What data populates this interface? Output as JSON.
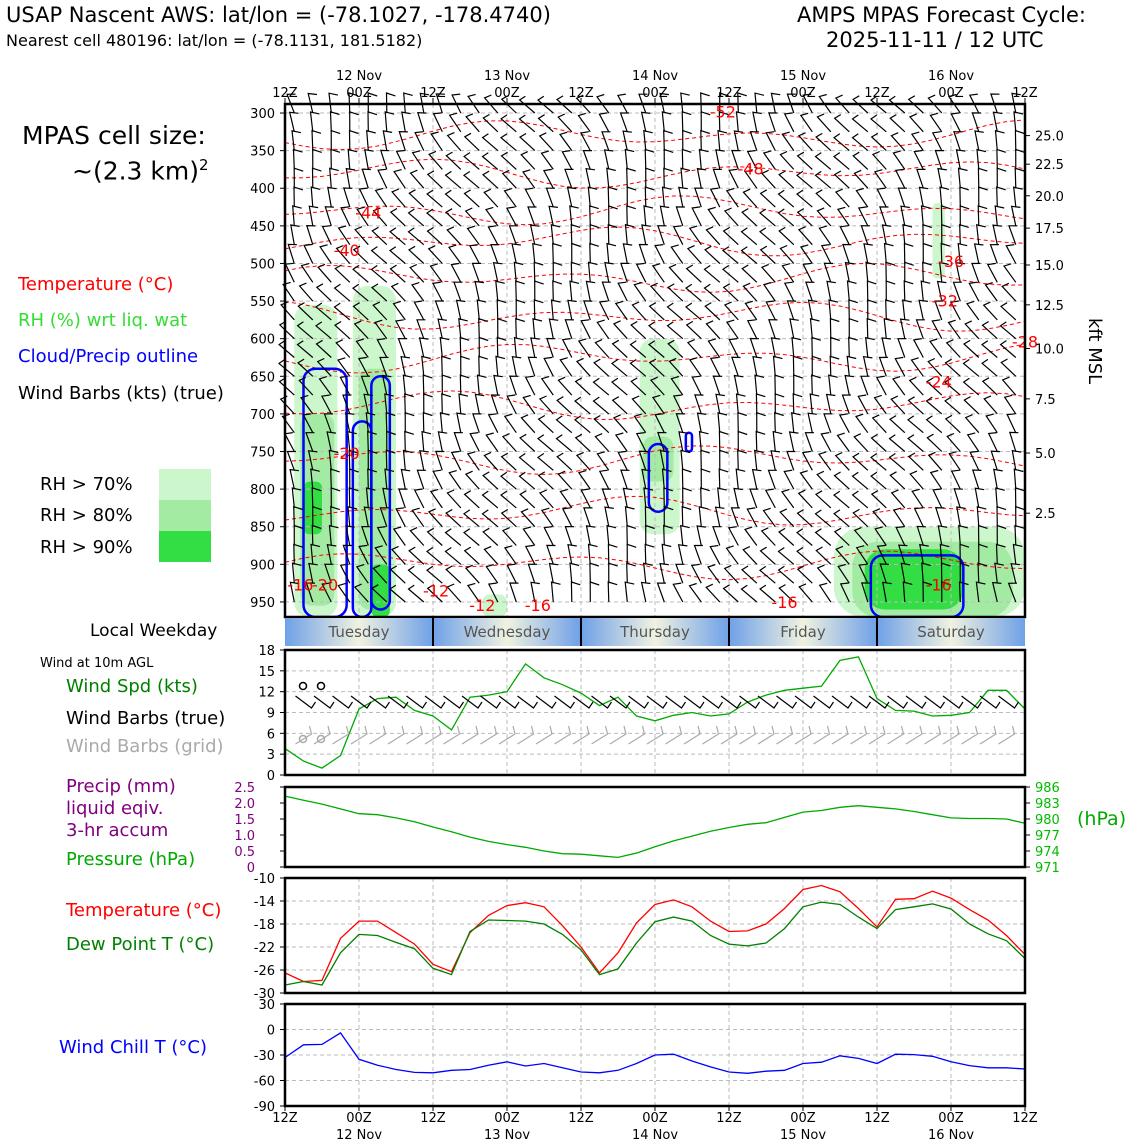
{
  "header": {
    "station_line": "USAP Nascent AWS: lat/lon = (-78.1027, -178.4740)",
    "cell_line": "Nearest cell 480196: lat/lon = (-78.1131, 181.5182)",
    "forecast_title": "AMPS MPAS Forecast Cycle:",
    "forecast_cycle": "2025-11-11 / 12 UTC"
  },
  "side_labels": {
    "cell_size_title": "MPAS cell size:",
    "cell_size_value": "~(2.3 km)",
    "cell_size_exp": "2",
    "temperature": "Temperature (°C)",
    "rh": "RH (%) wrt liq. wat",
    "cloud": "Cloud/Precip outline",
    "wind_barbs": "Wind Barbs (kts) (true)",
    "rh70": "RH > 70%",
    "rh80": "RH > 80%",
    "rh90": "RH > 90%",
    "local_weekday": "Local Weekday",
    "wind10m": "Wind at 10m AGL",
    "wind_spd": "Wind Spd (kts)",
    "wind_barbs_true": "Wind Barbs (true)",
    "wind_barbs_grid": "Wind Barbs (grid)",
    "precip1": "Precip (mm)",
    "precip2": "liquid eqiv.",
    "precip3": "3-hr accum",
    "pressure": "Pressure (hPa)",
    "hpa_unit": "(hPa)",
    "temp2": "Temperature (°C)",
    "dewpoint": "Dew Point T (°C)",
    "windchill": "Wind Chill T (°C)",
    "kft": "kft MSL"
  },
  "colors": {
    "temp": "#ff0000",
    "rh": "#33dd33",
    "cloud": "#0000ff",
    "wind": "#000000",
    "grid_wind": "#aaaaaa",
    "precip": "#800080",
    "pressure": "#00aa00",
    "dew": "#008000",
    "rh70": "#ccf7cc",
    "rh80": "#a3eba3",
    "rh90": "#33dd44",
    "windchill": "#0000ff"
  },
  "time_axis": {
    "top_row1": [
      "",
      "12 Nov",
      "",
      "13 Nov",
      "",
      "14 Nov",
      "",
      "15 Nov",
      "",
      "16 Nov",
      ""
    ],
    "top_row2": [
      "12Z",
      "00Z",
      "12Z",
      "00Z",
      "12Z",
      "00Z",
      "12Z",
      "00Z",
      "12Z",
      "00Z",
      "12Z"
    ],
    "bottom_row1": [
      "12Z",
      "00Z",
      "12Z",
      "00Z",
      "12Z",
      "00Z",
      "12Z",
      "00Z",
      "12Z",
      "00Z",
      "12Z"
    ],
    "bottom_row2": [
      "",
      "12 Nov",
      "",
      "13 Nov",
      "",
      "14 Nov",
      "",
      "15 Nov",
      "",
      "16 Nov",
      ""
    ]
  },
  "weekdays": [
    "Tuesday",
    "Wednesday",
    "Thursday",
    "Friday",
    "Saturday"
  ],
  "chart_data": [
    {
      "type": "heatmap",
      "name": "time-pressure cross-section",
      "x_hours": [
        0,
        120
      ],
      "ylabel_left": "hPa",
      "y_pressure_ticks": [
        300,
        350,
        400,
        450,
        500,
        550,
        600,
        650,
        700,
        750,
        800,
        850,
        900,
        950
      ],
      "ylim": [
        288,
        970
      ],
      "y_height_ticks_kft": [
        "25.0",
        "22.5",
        "20.0",
        "17.5",
        "15.0",
        "12.5",
        "10.0",
        "7.5",
        "5.0",
        "2.5"
      ],
      "y_height_tick_pressure": [
        330,
        368,
        410,
        453,
        502,
        555,
        613,
        680,
        752,
        832
      ],
      "temperature_contour_labels": [
        {
          "text": "-52",
          "t": 71,
          "p": 306
        },
        {
          "text": "-48",
          "t": 75.5,
          "p": 382
        },
        {
          "text": "-44",
          "t": 13.5,
          "p": 440
        },
        {
          "text": "-40",
          "t": 10,
          "p": 490
        },
        {
          "text": "-36",
          "t": 108,
          "p": 505
        },
        {
          "text": "-32",
          "t": 107,
          "p": 557
        },
        {
          "text": "-28",
          "t": 120,
          "p": 612
        },
        {
          "text": "-24",
          "t": 106,
          "p": 665
        },
        {
          "text": "-20",
          "t": 10,
          "p": 760
        },
        {
          "text": "-16",
          "t": 2.5,
          "p": 935
        },
        {
          "text": "-16",
          "t": 106,
          "p": 935
        },
        {
          "text": "-20",
          "t": 6.5,
          "p": 935
        },
        {
          "text": "-12",
          "t": 24.5,
          "p": 943
        },
        {
          "text": "-12",
          "t": 32,
          "p": 962
        },
        {
          "text": "-16",
          "t": 41,
          "p": 962
        },
        {
          "text": "-16",
          "t": 81,
          "p": 958
        }
      ],
      "rh_regions": [
        {
          "level": 70,
          "t0": 1.5,
          "t1": 8.5,
          "p0": 555,
          "p1": 970
        },
        {
          "level": 80,
          "t0": 2.5,
          "t1": 8,
          "p0": 700,
          "p1": 955
        },
        {
          "level": 90,
          "t0": 3,
          "t1": 6,
          "p0": 790,
          "p1": 860
        },
        {
          "level": 70,
          "t0": 11,
          "t1": 18,
          "p0": 530,
          "p1": 970
        },
        {
          "level": 80,
          "t0": 12,
          "t1": 17,
          "p0": 640,
          "p1": 960
        },
        {
          "level": 90,
          "t0": 14,
          "t1": 17,
          "p0": 900,
          "p1": 970
        },
        {
          "level": 70,
          "t0": 32,
          "t1": 36,
          "p0": 940,
          "p1": 970
        },
        {
          "level": 70,
          "t0": 57.5,
          "t1": 64,
          "p0": 600,
          "p1": 860
        },
        {
          "level": 80,
          "t0": 58,
          "t1": 63,
          "p0": 730,
          "p1": 790
        },
        {
          "level": 70,
          "t0": 89,
          "t1": 120,
          "p0": 850,
          "p1": 970
        },
        {
          "level": 80,
          "t0": 92,
          "t1": 118,
          "p0": 870,
          "p1": 970
        },
        {
          "level": 90,
          "t0": 94,
          "t1": 110,
          "p0": 880,
          "p1": 960
        },
        {
          "level": 70,
          "t0": 105,
          "t1": 107,
          "p0": 420,
          "p1": 520
        }
      ],
      "cloud_outlines": [
        {
          "t0": 3,
          "t1": 10,
          "p0": 640,
          "p1": 970
        },
        {
          "t0": 11,
          "t1": 14,
          "p0": 710,
          "p1": 970
        },
        {
          "t0": 14,
          "t1": 17,
          "p0": 650,
          "p1": 960
        },
        {
          "t0": 59,
          "t1": 62,
          "p0": 740,
          "p1": 830
        },
        {
          "t0": 65,
          "t1": 66,
          "p0": 725,
          "p1": 750
        },
        {
          "t0": 95,
          "t1": 110,
          "p0": 888,
          "p1": 970
        }
      ],
      "wind_barbs_kts": {
        "speed_min": 5,
        "speed_max": 30,
        "direction": "mostly northerly to north-westerly"
      }
    },
    {
      "type": "line",
      "name": "wind speed 10m",
      "x_hours": [
        0,
        3,
        6,
        9,
        12,
        15,
        18,
        21,
        24,
        27,
        30,
        33,
        36,
        39,
        42,
        45,
        48,
        51,
        54,
        57,
        60,
        63,
        66,
        69,
        72,
        75,
        78,
        81,
        84,
        87,
        90,
        93,
        96,
        99,
        102,
        105,
        108,
        111,
        114,
        117,
        120
      ],
      "series": [
        {
          "name": "Wind Spd (kts)",
          "values": [
            3.8,
            2,
            1,
            2.8,
            9.5,
            11,
            11.2,
            9.3,
            8.5,
            6.5,
            11.2,
            11.5,
            12,
            16,
            14,
            13,
            11.8,
            10,
            11.2,
            8.5,
            7.8,
            8.6,
            9,
            8.5,
            8.8,
            10.5,
            11.5,
            12.2,
            12.5,
            12.8,
            16.5,
            17,
            11,
            9.3,
            9.2,
            8.5,
            8.6,
            9,
            12.2,
            12.2,
            9.5
          ]
        }
      ],
      "yticks": [
        0,
        3,
        6,
        9,
        12,
        15,
        18
      ],
      "ylim": [
        0,
        18
      ]
    },
    {
      "type": "line",
      "name": "precip and pressure",
      "ylabel_left": "Precip (mm)",
      "yticks_left": [
        "0",
        "0.5",
        "1.0",
        "1.5",
        "2.0",
        "2.5"
      ],
      "ylabel_right": "(hPa)",
      "yticks_right": [
        971,
        974,
        977,
        980,
        983,
        986
      ],
      "ylim_right": [
        971,
        986
      ],
      "x_hours": [
        0,
        3,
        6,
        9,
        12,
        15,
        18,
        21,
        24,
        27,
        30,
        33,
        36,
        39,
        42,
        45,
        48,
        51,
        54,
        57,
        60,
        63,
        66,
        69,
        72,
        75,
        78,
        81,
        84,
        87,
        90,
        93,
        96,
        99,
        102,
        105,
        108,
        111,
        114,
        117,
        120
      ],
      "series": [
        {
          "name": "Pressure (hPa)",
          "values": [
            984.3,
            983.5,
            982.8,
            981.9,
            981,
            980.8,
            980.2,
            979.5,
            978.5,
            977.6,
            976.6,
            975.8,
            975.2,
            974.7,
            974,
            973.5,
            973.4,
            973.1,
            972.8,
            973.6,
            974.8,
            975.9,
            976.8,
            977.7,
            978.4,
            979,
            979.3,
            980.3,
            981.3,
            981.6,
            982.2,
            982.5,
            982.2,
            981.9,
            981.4,
            980.8,
            980.2,
            980.1,
            980.1,
            980,
            979.2
          ]
        },
        {
          "name": "Precip (mm)",
          "values": [
            0,
            0,
            0,
            0,
            0,
            0,
            0,
            0,
            0,
            0,
            0,
            0,
            0,
            0,
            0,
            0,
            0,
            0,
            0,
            0,
            0,
            0,
            0,
            0,
            0,
            0,
            0,
            0,
            0,
            0,
            0,
            0,
            0,
            0,
            0,
            0,
            0,
            0,
            0,
            0,
            0
          ]
        }
      ]
    },
    {
      "type": "line",
      "name": "temperature and dew point",
      "yticks": [
        -30,
        -26,
        -22,
        -18,
        -14,
        -10
      ],
      "ylim": [
        -30,
        -10
      ],
      "x_hours": [
        0,
        3,
        6,
        9,
        12,
        15,
        18,
        21,
        24,
        27,
        30,
        33,
        36,
        39,
        42,
        45,
        48,
        51,
        54,
        57,
        60,
        63,
        66,
        69,
        72,
        75,
        78,
        81,
        84,
        87,
        90,
        93,
        96,
        99,
        102,
        105,
        108,
        111,
        114,
        117,
        120
      ],
      "series": [
        {
          "name": "Temperature (°C)",
          "values": [
            -26.5,
            -28,
            -27.8,
            -20.5,
            -17.5,
            -17.5,
            -19.5,
            -21.5,
            -25,
            -26.3,
            -19.5,
            -16.5,
            -14.8,
            -14.3,
            -15,
            -18.3,
            -22,
            -26.5,
            -23,
            -17.8,
            -14.6,
            -13.8,
            -15,
            -17.5,
            -19.3,
            -19.2,
            -18,
            -15.3,
            -12,
            -11.3,
            -12.4,
            -15.3,
            -18.5,
            -13.7,
            -13.6,
            -12.3,
            -13.5,
            -15.5,
            -17.3,
            -20,
            -23.3
          ]
        },
        {
          "name": "Dew Point T (°C)",
          "values": [
            -28.6,
            -28,
            -28.6,
            -23,
            -19.8,
            -20,
            -21.2,
            -22.3,
            -25.7,
            -26.8,
            -19.3,
            -17.3,
            -17.4,
            -17.5,
            -18,
            -19.8,
            -22.5,
            -26.8,
            -25.8,
            -21.3,
            -17.6,
            -16.8,
            -17.5,
            -20,
            -21.5,
            -21.8,
            -21.3,
            -18.8,
            -15,
            -14.2,
            -14.6,
            -16.8,
            -18.8,
            -15.5,
            -15,
            -14.5,
            -15.4,
            -18,
            -19.7,
            -20.9,
            -24
          ]
        }
      ]
    },
    {
      "type": "line",
      "name": "wind chill",
      "yticks": [
        -90,
        -60,
        -30,
        0,
        30
      ],
      "ylim": [
        -90,
        30
      ],
      "x_hours": [
        0,
        3,
        6,
        9,
        12,
        15,
        18,
        21,
        24,
        27,
        30,
        33,
        36,
        39,
        42,
        45,
        48,
        51,
        54,
        57,
        60,
        63,
        66,
        69,
        72,
        75,
        78,
        81,
        84,
        87,
        90,
        93,
        96,
        99,
        102,
        105,
        108,
        111,
        114,
        117,
        120
      ],
      "series": [
        {
          "name": "Wind Chill T (°C)",
          "values": [
            -33,
            -18,
            -17.5,
            -4,
            -35,
            -42,
            -47,
            -50.5,
            -51,
            -48,
            -47,
            -42,
            -38,
            -43,
            -40,
            -45,
            -50,
            -51,
            -48,
            -40,
            -30,
            -29,
            -37,
            -44,
            -50,
            -51.5,
            -49,
            -48,
            -40,
            -38.5,
            -31,
            -34,
            -40,
            -29,
            -29.5,
            -31.5,
            -38,
            -42.5,
            -45,
            -45,
            -46.5
          ]
        }
      ]
    }
  ]
}
